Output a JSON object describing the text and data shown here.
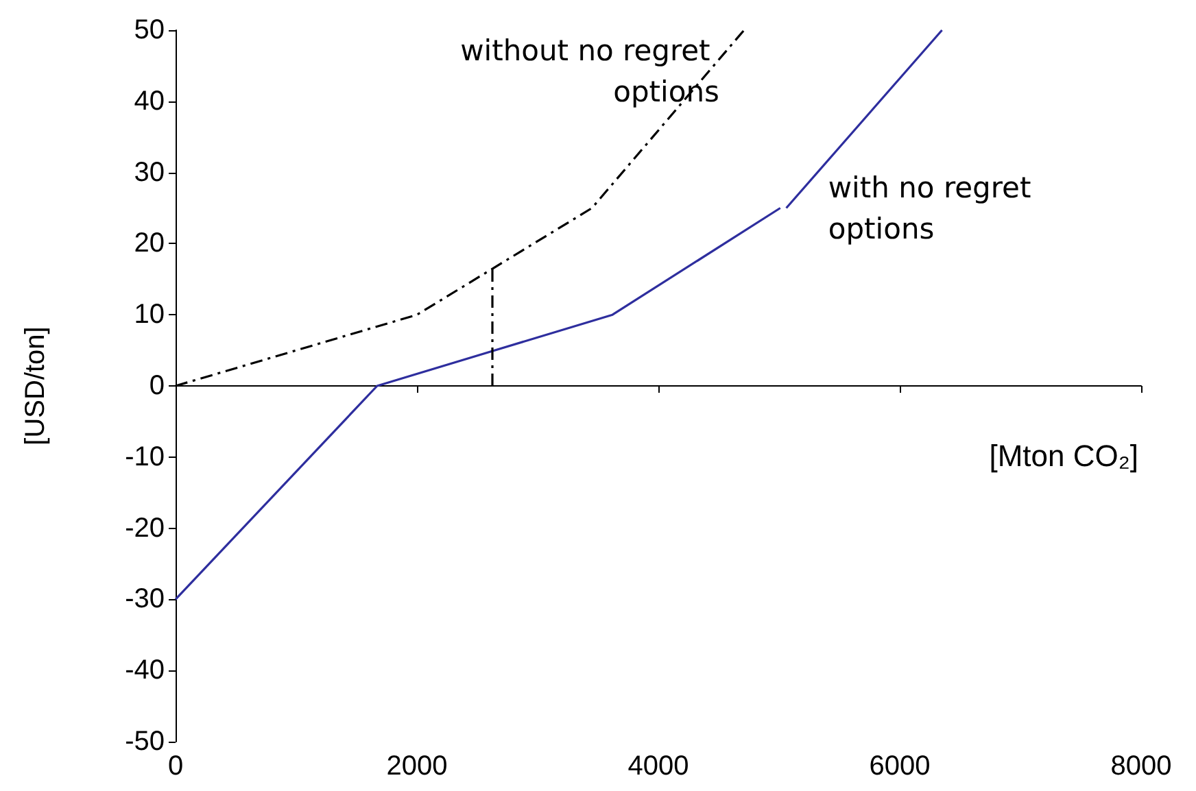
{
  "chart_data": {
    "type": "line",
    "xlabel": "[Mton CO₂]",
    "ylabel": "[USD/ton]",
    "xlim": [
      0,
      8000
    ],
    "xticks": [
      0,
      2000,
      4000,
      6000,
      8000
    ],
    "ylim": [
      -50,
      50
    ],
    "yticks": [
      -50,
      -40,
      -30,
      -20,
      -10,
      0,
      10,
      20,
      30,
      40,
      50
    ],
    "legend": false,
    "marker": "none",
    "series": [
      {
        "name": "without no regret options",
        "color": "#000000",
        "line_style": "dashed",
        "x": [
          0,
          2000,
          3450,
          4710
        ],
        "values": [
          0,
          10,
          25,
          50
        ]
      },
      {
        "name": "with no regret options",
        "color": "#2e2e9e",
        "line_style": "solid",
        "x": [
          0,
          1670,
          3620,
          5010,
          5035,
          5060,
          6350
        ],
        "values": [
          -30,
          0,
          10,
          25,
          null,
          25,
          50
        ]
      },
      {
        "color": "#000000",
        "line_style": "dashed",
        "x": [
          2625,
          2625
        ],
        "values": [
          0,
          16.5
        ]
      }
    ]
  }
}
